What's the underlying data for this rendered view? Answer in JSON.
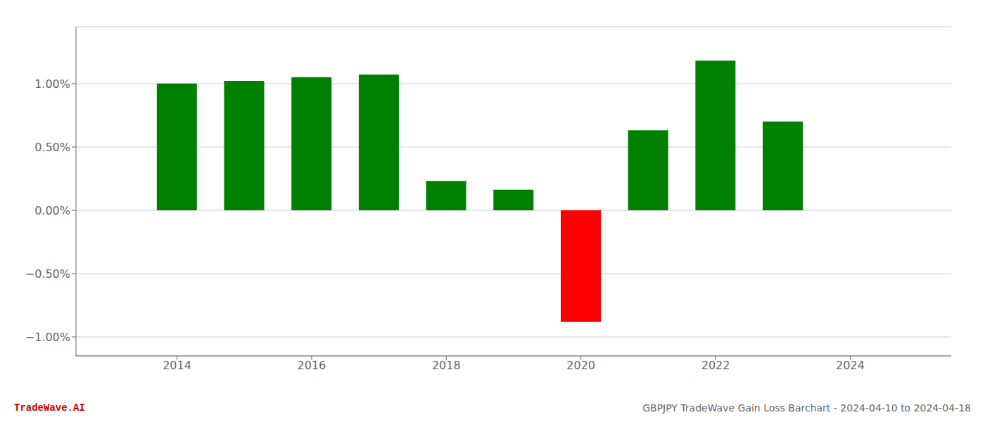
{
  "chart_data": {
    "type": "bar",
    "x": [
      2014,
      2015,
      2016,
      2017,
      2018,
      2019,
      2020,
      2021,
      2022,
      2023
    ],
    "values": [
      1.002,
      1.022,
      1.052,
      1.072,
      0.232,
      0.162,
      -0.882,
      0.632,
      1.182,
      0.702
    ],
    "colors": [
      "#008000",
      "#008000",
      "#008000",
      "#008000",
      "#008000",
      "#008000",
      "#ff0000",
      "#008000",
      "#008000",
      "#008000"
    ],
    "xlim": [
      2012.5,
      2025.5
    ],
    "xticks": [
      2014,
      2016,
      2018,
      2020,
      2022,
      2024
    ],
    "ylim": [
      -1.15,
      1.45
    ],
    "yticks": [
      {
        "value": -1.0,
        "label": "−1.00%"
      },
      {
        "value": -0.5,
        "label": "−0.50%"
      },
      {
        "value": 0.0,
        "label": "0.00%"
      },
      {
        "value": 0.5,
        "label": "0.50%"
      },
      {
        "value": 1.0,
        "label": "1.00%"
      }
    ],
    "grid": true,
    "annotations": [
      {
        "text": "TradeWave.AI",
        "color": "#cc0000"
      },
      {
        "text": "GBPJPY TradeWave Gain Loss Barchart - 2024-04-10 to 2024-04-18"
      }
    ]
  }
}
